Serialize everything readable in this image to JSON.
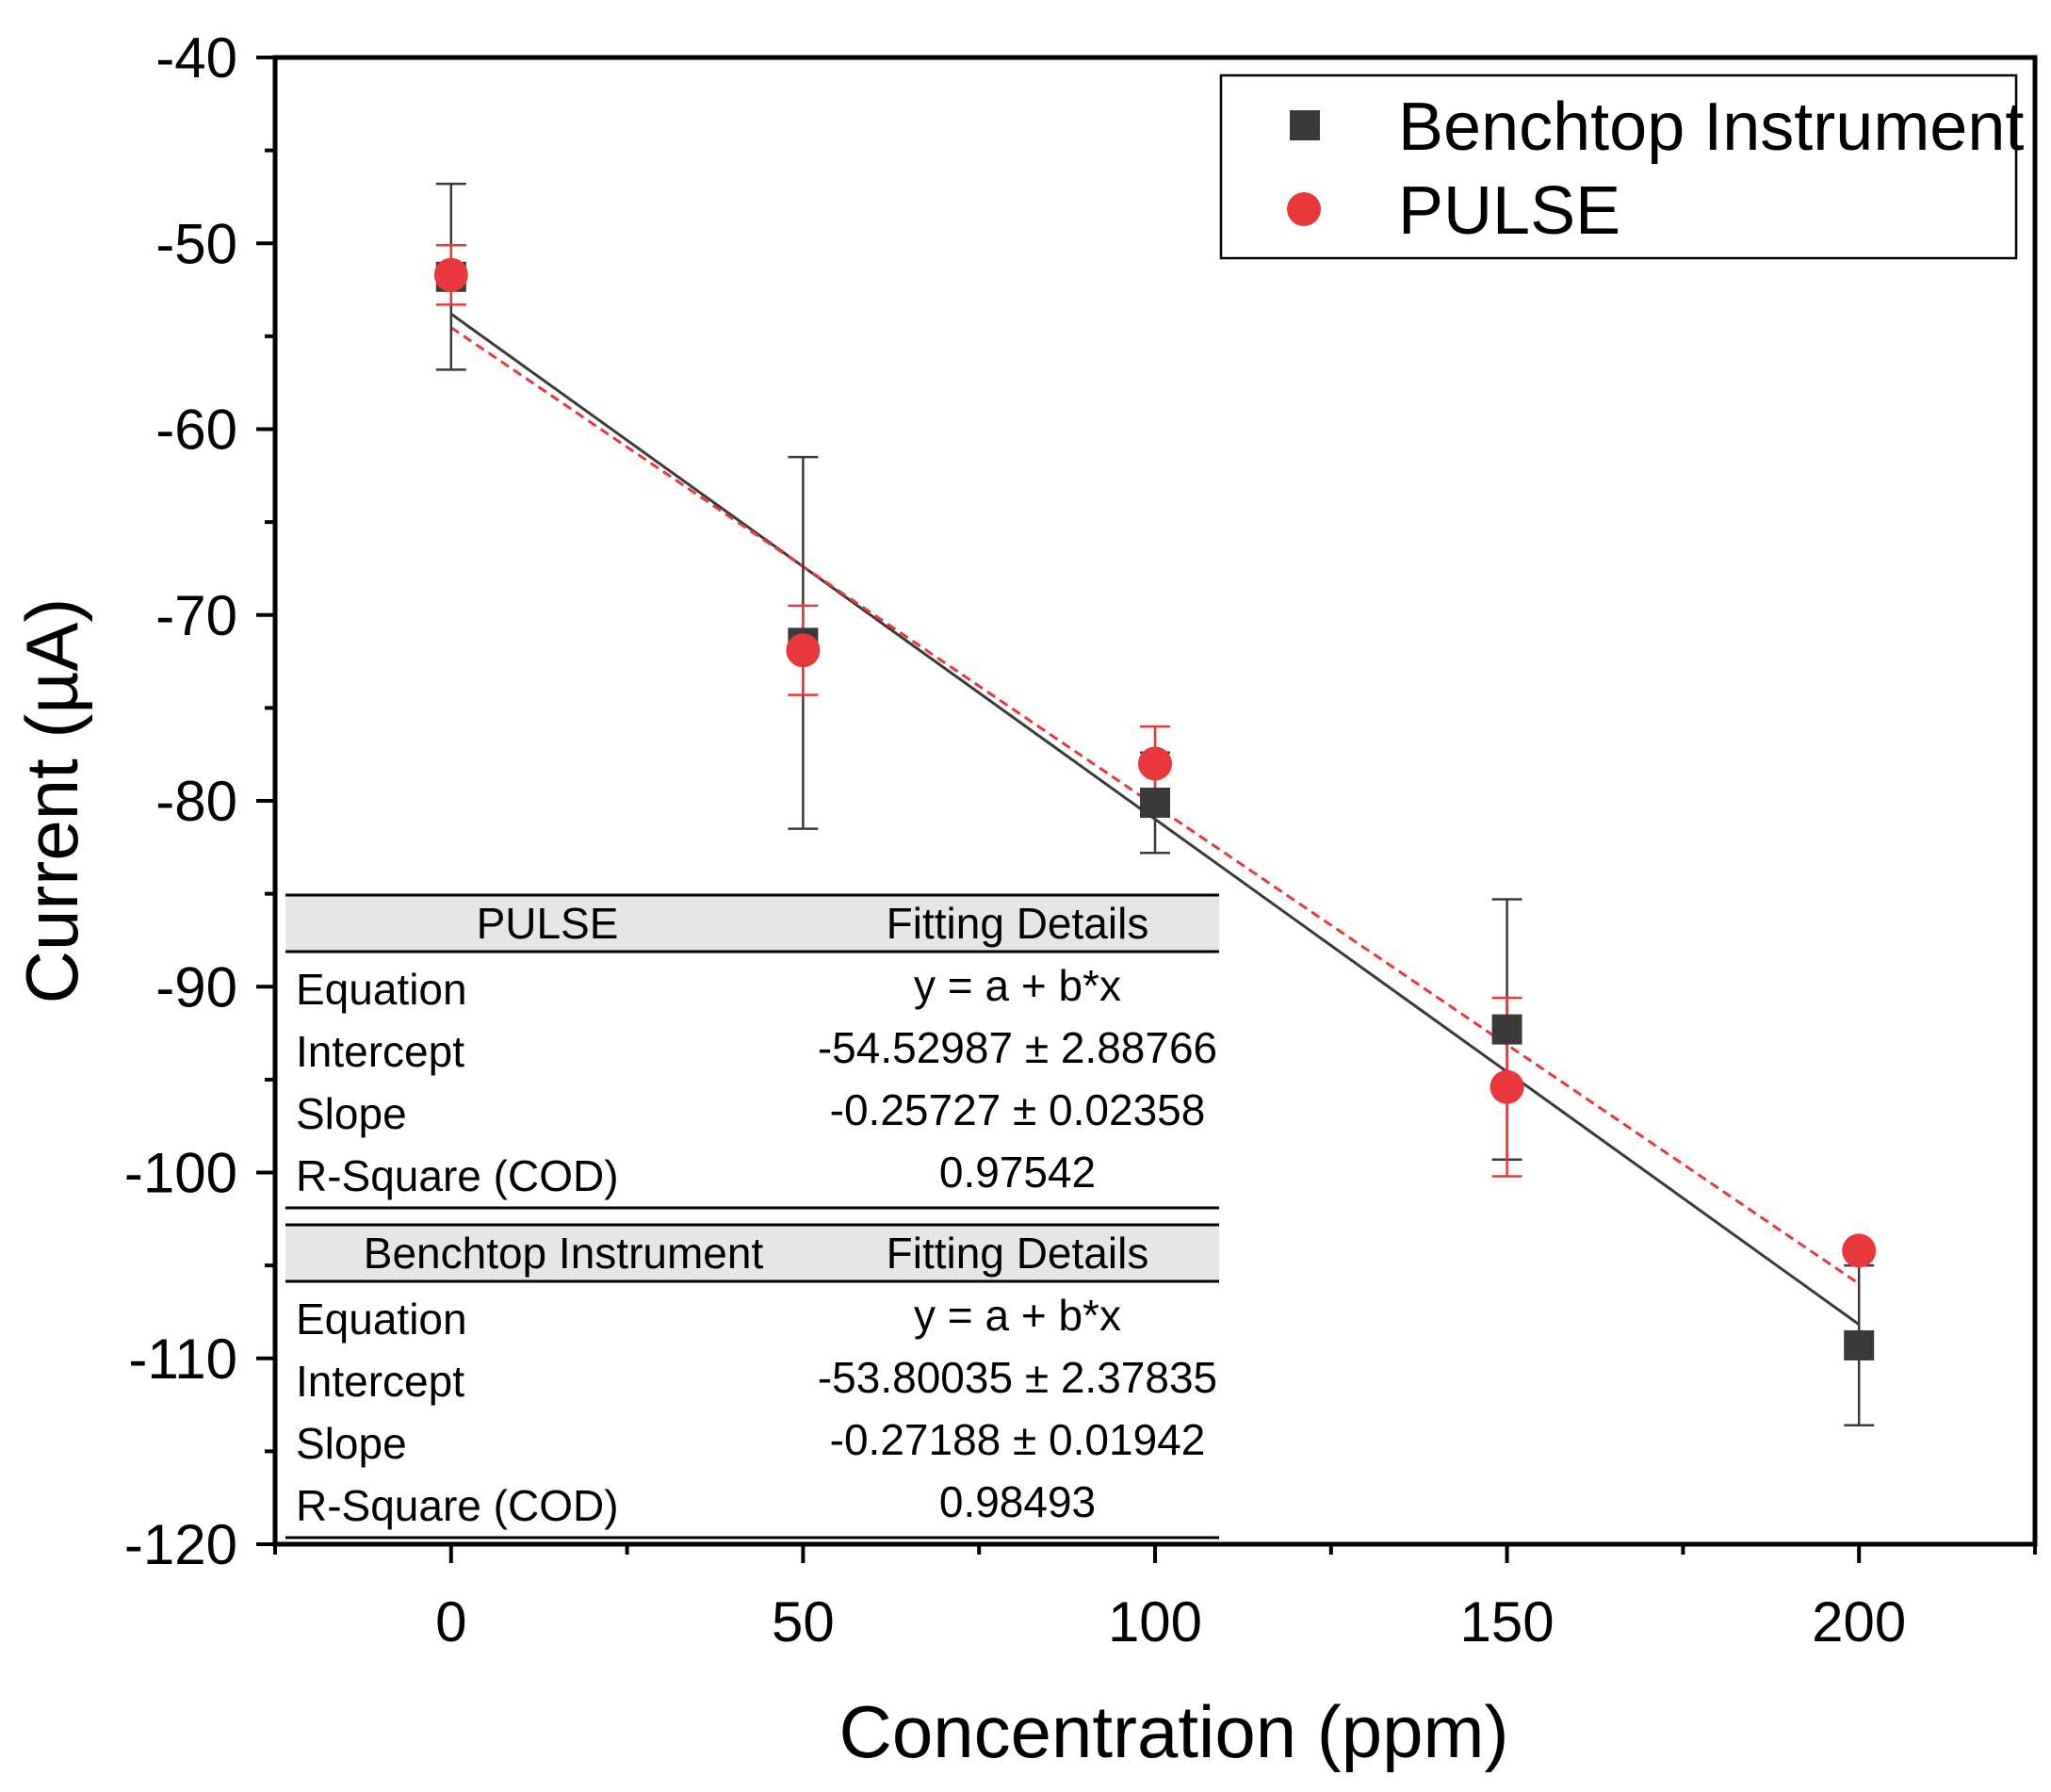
{
  "chart_data": {
    "type": "scatter",
    "xlabel": "Concentration (ppm)",
    "ylabel": "Current (µA)",
    "xlim": [
      -25,
      225
    ],
    "ylim": [
      -120,
      -40
    ],
    "x_ticks": [
      0,
      50,
      100,
      150,
      200
    ],
    "y_ticks": [
      -40,
      -50,
      -60,
      -70,
      -80,
      -90,
      -100,
      -110,
      -120
    ],
    "x_tick_labels": [
      "0",
      "50",
      "100",
      "150",
      "200"
    ],
    "y_tick_labels": [
      "-40",
      "-50",
      "-60",
      "-70",
      "-80",
      "-90",
      "-100",
      "-110",
      "-120"
    ],
    "grid": false,
    "legend_position": "top-right",
    "series": [
      {
        "name": "Benchtop Instrument",
        "marker": "square",
        "color": "#3a3a3a",
        "x": [
          0,
          50,
          100,
          150,
          200
        ],
        "y": [
          -51.8,
          -71.5,
          -80.1,
          -92.3,
          -109.3
        ],
        "err": [
          5.0,
          10.0,
          2.7,
          7.0,
          4.3
        ],
        "fit": {
          "intercept": -53.80035,
          "slope": -0.27188,
          "style": "solid",
          "color": "#3a3a3a"
        }
      },
      {
        "name": "PULSE",
        "marker": "circle",
        "color": "#e8383b",
        "x": [
          0,
          50,
          100,
          150,
          200
        ],
        "y": [
          -51.7,
          -71.9,
          -78.0,
          -95.4,
          -104.2
        ],
        "err": [
          1.6,
          2.4,
          2.0,
          4.8,
          0.0
        ],
        "fit": {
          "intercept": -54.52987,
          "slope": -0.25727,
          "style": "dashed",
          "color": "#e8383b"
        }
      }
    ],
    "fit_tables": [
      {
        "header": [
          "PULSE",
          "Fitting Details"
        ],
        "rows": [
          [
            "Equation",
            "y = a + b*x"
          ],
          [
            "Intercept",
            "-54.52987 ± 2.88766"
          ],
          [
            "Slope",
            "-0.25727 ± 0.02358"
          ],
          [
            "R-Square (COD)",
            "0.97542"
          ]
        ]
      },
      {
        "header": [
          "Benchtop Instrument",
          "Fitting Details"
        ],
        "rows": [
          [
            "Equation",
            "y = a + b*x"
          ],
          [
            "Intercept",
            "-53.80035 ± 2.37835"
          ],
          [
            "Slope",
            "-0.27188 ± 0.01942"
          ],
          [
            "R-Square (COD)",
            "0.98493"
          ]
        ]
      }
    ],
    "colors": {
      "table_header_bg": "#e6e6e6",
      "axis": "#000000"
    }
  }
}
